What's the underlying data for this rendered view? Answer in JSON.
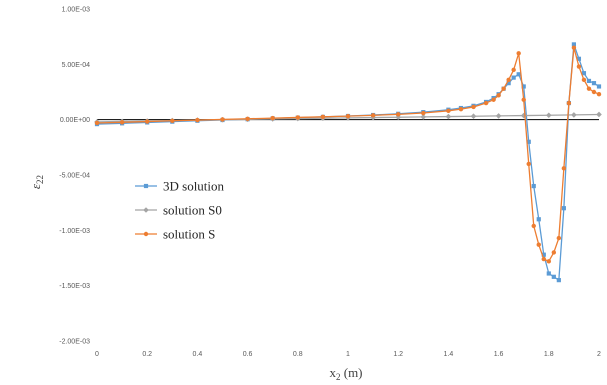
{
  "chart_data": {
    "type": "line",
    "xlabel_main": "x",
    "xlabel_sub": "2",
    "xlabel_unit": " (m)",
    "ylabel_main": "ε",
    "ylabel_sub": "22",
    "xlim": [
      0,
      2
    ],
    "ylim": [
      -0.002,
      0.001
    ],
    "x_ticks": [
      0,
      0.2,
      0.4,
      0.6,
      0.8,
      1,
      1.2,
      1.4,
      1.6,
      1.8,
      2
    ],
    "x_tick_labels": [
      "0",
      "0.2",
      "0.4",
      "0.6",
      "0.8",
      "1",
      "1.2",
      "1.4",
      "1.6",
      "1.8",
      "2"
    ],
    "y_ticks": [
      0.001,
      0.0005,
      0,
      -0.0005,
      -0.001,
      -0.0015,
      -0.002
    ],
    "y_tick_labels": [
      "1.00E-03",
      "5.00E-04",
      "0.00E+00",
      "-5.00E-04",
      "-1.00E-03",
      "-1.50E-03",
      "-2.00E-03"
    ],
    "grid": false,
    "legend_position": "left-middle",
    "series": [
      {
        "name": "3D solution",
        "color": "#5b9bd5",
        "marker": "square",
        "x": [
          0,
          0.1,
          0.2,
          0.3,
          0.4,
          0.5,
          0.6,
          0.7,
          0.8,
          0.9,
          1.0,
          1.1,
          1.2,
          1.3,
          1.4,
          1.45,
          1.5,
          1.55,
          1.58,
          1.6,
          1.62,
          1.64,
          1.66,
          1.68,
          1.7,
          1.72,
          1.74,
          1.76,
          1.78,
          1.8,
          1.82,
          1.84,
          1.86,
          1.88,
          1.9,
          1.92,
          1.94,
          1.96,
          1.98,
          2.0
        ],
        "y": [
          -4e-05,
          -3.3e-05,
          -2.5e-05,
          -1.8e-05,
          -1e-05,
          -3e-06,
          4e-06,
          1.1e-05,
          1.8e-05,
          2.5e-05,
          3.3e-05,
          4.2e-05,
          5.3e-05,
          6.8e-05,
          9e-05,
          0.000105,
          0.000125,
          0.00016,
          0.000195,
          0.00023,
          0.00028,
          0.00033,
          0.00038,
          0.00041,
          0.0003,
          -0.0002,
          -0.0006,
          -0.0009,
          -0.00122,
          -0.00139,
          -0.00142,
          -0.00145,
          -0.0008,
          0.00015,
          0.00068,
          0.00055,
          0.00042,
          0.00035,
          0.00033,
          0.0003
        ]
      },
      {
        "name": "solution S0",
        "color": "#a5a5a5",
        "marker": "diamond",
        "x": [
          0,
          0.1,
          0.2,
          0.3,
          0.4,
          0.5,
          0.6,
          0.7,
          0.8,
          0.9,
          1.0,
          1.1,
          1.2,
          1.3,
          1.4,
          1.5,
          1.6,
          1.7,
          1.8,
          1.9,
          2.0
        ],
        "y": [
          -2e-05,
          -1.6e-05,
          -1.2e-05,
          -8e-06,
          -4e-06,
          0.0,
          3e-06,
          6e-06,
          1e-05,
          1.3e-05,
          1.6e-05,
          1.9e-05,
          2.2e-05,
          2.5e-05,
          2.8e-05,
          3.1e-05,
          3.4e-05,
          3.7e-05,
          4e-05,
          4.3e-05,
          4.7e-05
        ]
      },
      {
        "name": "solution S",
        "color": "#ed7d31",
        "marker": "circle",
        "x": [
          0,
          0.1,
          0.2,
          0.3,
          0.4,
          0.5,
          0.6,
          0.7,
          0.8,
          0.9,
          1.0,
          1.1,
          1.2,
          1.3,
          1.4,
          1.45,
          1.5,
          1.55,
          1.58,
          1.6,
          1.62,
          1.64,
          1.66,
          1.68,
          1.7,
          1.72,
          1.74,
          1.76,
          1.78,
          1.8,
          1.82,
          1.84,
          1.86,
          1.88,
          1.9,
          1.92,
          1.94,
          1.96,
          1.98,
          2.0
        ],
        "y": [
          -3e-05,
          -2.4e-05,
          -1.7e-05,
          -1e-05,
          -4e-06,
          2e-06,
          8e-06,
          1.4e-05,
          2e-05,
          2.6e-05,
          3.2e-05,
          3.9e-05,
          4.8e-05,
          6e-05,
          8e-05,
          9.5e-05,
          0.000115,
          0.00015,
          0.00018,
          0.00022,
          0.00028,
          0.00036,
          0.00045,
          0.0006,
          0.00018,
          -0.0004,
          -0.00096,
          -0.00113,
          -0.00126,
          -0.00128,
          -0.0012,
          -0.00107,
          -0.00044,
          0.00015,
          0.00065,
          0.00048,
          0.00036,
          0.00028,
          0.00025,
          0.00023
        ]
      }
    ]
  }
}
